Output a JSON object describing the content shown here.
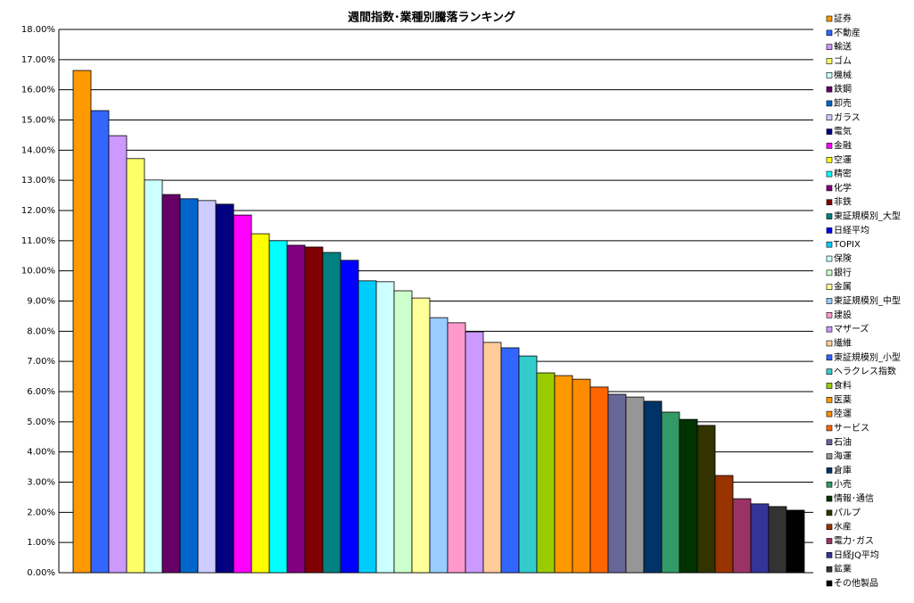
{
  "chart_data": {
    "type": "bar",
    "title": "週間指数･業種別騰落ランキング",
    "categories": [
      "証券",
      "不動産",
      "輸送",
      "ゴム",
      "機械",
      "鉄鋼",
      "卸売",
      "ガラス",
      "電気",
      "金融",
      "空運",
      "精密",
      "化学",
      "非鉄",
      "東証規模別_大型",
      "日経平均",
      "TOPIX",
      "保険",
      "銀行",
      "金属",
      "東証規模別_中型",
      "建設",
      "マザーズ",
      "繊維",
      "東証規模別_小型",
      "ヘラクレス指数",
      "食料",
      "医薬",
      "陸運",
      "サービス",
      "石油",
      "海運",
      "倉庫",
      "小売",
      "情報･通信",
      "パルプ",
      "水産",
      "電力･ガス",
      "日経JQ平均",
      "鉱業",
      "その他製品"
    ],
    "values": [
      16.64,
      15.31,
      14.48,
      13.72,
      13.01,
      12.53,
      12.39,
      12.33,
      12.21,
      11.85,
      11.23,
      11.0,
      10.85,
      10.79,
      10.61,
      10.35,
      9.67,
      9.64,
      9.34,
      9.1,
      8.45,
      8.28,
      7.98,
      7.63,
      7.45,
      7.18,
      6.62,
      6.53,
      6.41,
      6.15,
      5.91,
      5.82,
      5.68,
      5.32,
      5.08,
      4.88,
      3.22,
      2.45,
      2.28,
      2.19,
      2.07
    ],
    "colors": [
      "#FF9900",
      "#3366FF",
      "#CC99FF",
      "#FFFF66",
      "#CCFFFF",
      "#660066",
      "#0066CC",
      "#CCCCFF",
      "#000080",
      "#FF00FF",
      "#FFFF00",
      "#00FFFF",
      "#800080",
      "#800000",
      "#008080",
      "#0000FF",
      "#00CCFF",
      "#CCFFFF",
      "#CCFFCC",
      "#FFFF99",
      "#99CCFF",
      "#FF99CC",
      "#CC99FF",
      "#FFCC99",
      "#3366FF",
      "#33CCCC",
      "#99CC00",
      "#FF9900",
      "#FF8C00",
      "#FF6600",
      "#666699",
      "#969696",
      "#003366",
      "#339966",
      "#003300",
      "#333300",
      "#993300",
      "#993366",
      "#333399",
      "#333333",
      "#000000"
    ],
    "ylim": [
      0,
      18
    ],
    "yticks": [
      {
        "value": 0,
        "label": "0.00%"
      },
      {
        "value": 1,
        "label": "1.00%"
      },
      {
        "value": 2,
        "label": "2.00%"
      },
      {
        "value": 3,
        "label": "3.00%"
      },
      {
        "value": 4,
        "label": "4.00%"
      },
      {
        "value": 5,
        "label": "5.00%"
      },
      {
        "value": 6,
        "label": "6.00%"
      },
      {
        "value": 7,
        "label": "7.00%"
      },
      {
        "value": 8,
        "label": "8.00%"
      },
      {
        "value": 9,
        "label": "9.00%"
      },
      {
        "value": 10,
        "label": "10.00%"
      },
      {
        "value": 11,
        "label": "11.00%"
      },
      {
        "value": 12,
        "label": "12.00%"
      },
      {
        "value": 13,
        "label": "13.00%"
      },
      {
        "value": 14,
        "label": "14.00%"
      },
      {
        "value": 15,
        "label": "15.00%"
      },
      {
        "value": 16,
        "label": "16.00%"
      },
      {
        "value": 17,
        "label": "17.00%"
      },
      {
        "value": 18,
        "label": "18.00%"
      }
    ],
    "grid": true
  }
}
